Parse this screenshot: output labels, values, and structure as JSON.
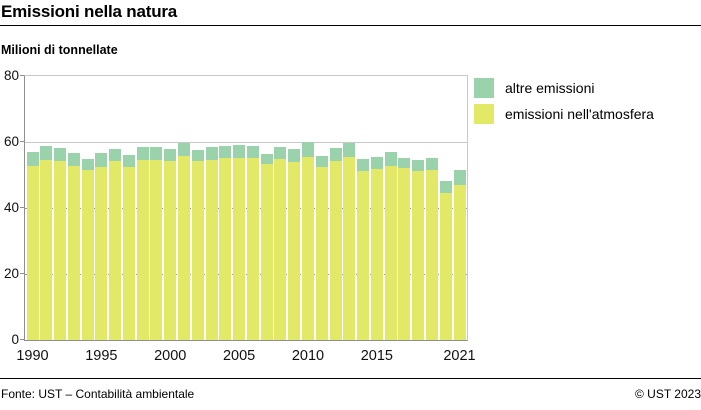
{
  "header": {
    "title": "Emissioni nella natura",
    "subtitle": "Milioni di tonnellate"
  },
  "legend": {
    "items": [
      {
        "label": "altre emissioni",
        "color": "#9ad2ab"
      },
      {
        "label": "emissioni nell'atmosfera",
        "color": "#e2e966"
      }
    ]
  },
  "footer": {
    "source": "Fonte: UST – Contabilità ambientale",
    "copyright": "© UST 2023"
  },
  "chart_data": {
    "type": "bar",
    "stacked": true,
    "title": "Emissioni nella natura",
    "ylabel": "Milioni di tonnellate",
    "x": [
      1990,
      1991,
      1992,
      1993,
      1994,
      1995,
      1996,
      1997,
      1998,
      1999,
      2000,
      2001,
      2002,
      2003,
      2004,
      2005,
      2006,
      2007,
      2008,
      2009,
      2010,
      2011,
      2012,
      2013,
      2014,
      2015,
      2016,
      2017,
      2018,
      2019,
      2020,
      2021
    ],
    "series": [
      {
        "name": "emissioni nell'atmosfera",
        "color": "#e2e966",
        "values": [
          52.8,
          54.6,
          54.1,
          52.6,
          51.4,
          52.5,
          54.1,
          52.3,
          54.6,
          54.6,
          54.1,
          55.8,
          54.3,
          54.6,
          55.2,
          55.2,
          55.2,
          53.3,
          54.9,
          53.8,
          55.6,
          52.4,
          54.1,
          55.6,
          51.3,
          51.7,
          52.6,
          52.0,
          51.3,
          51.6,
          44.5,
          47.0
        ]
      },
      {
        "name": "altre emissioni",
        "color": "#9ad2ab",
        "values": [
          4.2,
          4.1,
          4.2,
          4.0,
          3.6,
          4.3,
          3.9,
          3.8,
          3.8,
          3.9,
          3.7,
          4.0,
          3.4,
          3.8,
          3.7,
          4.0,
          3.7,
          3.1,
          3.7,
          4.1,
          4.5,
          3.4,
          4.1,
          4.0,
          3.5,
          3.8,
          4.3,
          3.2,
          3.2,
          3.6,
          3.7,
          4.5
        ]
      }
    ],
    "ylim": [
      0,
      80
    ],
    "yticks": [
      0,
      20,
      40,
      60,
      80
    ],
    "xticks": [
      1990,
      1995,
      2000,
      2005,
      2010,
      2015,
      2021
    ],
    "grid": {
      "solid": [
        60
      ],
      "dotted": [
        20,
        40
      ]
    },
    "legend_position": "top-right",
    "axis_color": "#8f8f8f",
    "frame_color": "#c9c9c9"
  }
}
